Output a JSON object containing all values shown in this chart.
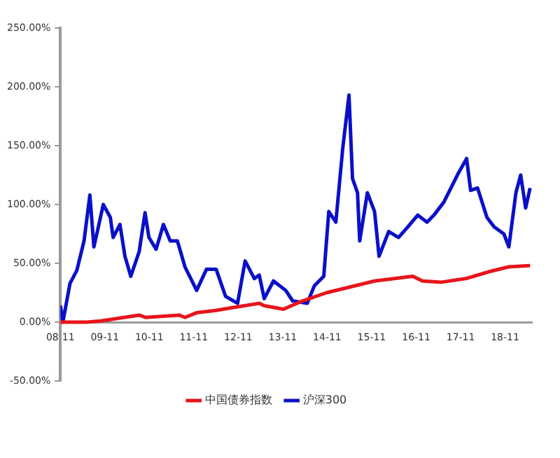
{
  "chart_data": {
    "type": "line",
    "legend": "bottom",
    "grid": false,
    "marker": "none",
    "line_style": "solid",
    "xlim": [
      "2008-11-01",
      "2019-06-10"
    ],
    "ylim": [
      -50,
      250
    ],
    "xticks": [
      {
        "value": "2008-11-01",
        "label": "08-11"
      },
      {
        "value": "2009-11-01",
        "label": "09-11"
      },
      {
        "value": "2010-11-01",
        "label": "10-11"
      },
      {
        "value": "2011-11-01",
        "label": "11-11"
      },
      {
        "value": "2012-11-01",
        "label": "12-11"
      },
      {
        "value": "2013-11-01",
        "label": "13-11"
      },
      {
        "value": "2014-11-01",
        "label": "14-11"
      },
      {
        "value": "2015-11-01",
        "label": "15-11"
      },
      {
        "value": "2016-11-01",
        "label": "16-11"
      },
      {
        "value": "2017-11-01",
        "label": "17-11"
      },
      {
        "value": "2018-11-01",
        "label": "18-11"
      }
    ],
    "yticks": [
      {
        "value": -50,
        "label": "-50.00%"
      },
      {
        "value": 0,
        "label": "0.00%"
      },
      {
        "value": 50,
        "label": "50.00%"
      },
      {
        "value": 100,
        "label": "100.00%"
      },
      {
        "value": 150,
        "label": "150.00%"
      },
      {
        "value": 200,
        "label": "200.00%"
      },
      {
        "value": 250,
        "label": "250.00%"
      }
    ],
    "series": [
      {
        "name": "中国债券指数",
        "color": "#e8141b",
        "x": [
          "2008-11-01",
          "2009-06-05",
          "2009-10-01",
          "2010-08-10",
          "2010-10-04",
          "2011-07-04",
          "2011-08-21",
          "2011-11-25",
          "2012-05-03",
          "2012-08-28",
          "2013-04-22",
          "2013-06-02",
          "2013-11-07",
          "2014-04-11",
          "2014-10-26",
          "2015-11-25",
          "2016-10-04",
          "2016-12-23",
          "2017-05-28",
          "2017-12-13",
          "2018-06-27",
          "2018-12-02",
          "2019-05-25"
        ],
        "values": [
          0,
          0,
          1,
          6,
          4,
          6,
          4,
          8,
          10,
          12,
          16,
          14,
          11,
          18,
          25,
          35,
          39,
          35,
          34,
          37,
          43,
          47,
          48
        ]
      },
      {
        "name": "沪深300",
        "color": "#0a10c8",
        "x": [
          "2008-11-01",
          "2008-11-21",
          "2009-01-19",
          "2009-03-16",
          "2009-05-14",
          "2009-07-01",
          "2009-08-03",
          "2009-09-09",
          "2009-10-19",
          "2009-12-16",
          "2010-01-08",
          "2010-03-05",
          "2010-04-15",
          "2010-06-02",
          "2010-08-10",
          "2010-09-27",
          "2010-10-29",
          "2010-12-27",
          "2011-02-25",
          "2011-04-22",
          "2011-06-20",
          "2011-08-21",
          "2011-11-25",
          "2012-02-14",
          "2012-05-03",
          "2012-07-19",
          "2012-10-26",
          "2012-12-27",
          "2013-03-13",
          "2013-04-22",
          "2013-06-02",
          "2013-08-17",
          "2013-11-25",
          "2014-01-22",
          "2014-05-21",
          "2014-07-19",
          "2014-10-04",
          "2014-11-14",
          "2015-01-11",
          "2015-03-09",
          "2015-04-29",
          "2015-05-28",
          "2015-07-08",
          "2015-07-26",
          "2015-09-27",
          "2015-11-25",
          "2016-01-01",
          "2016-03-20",
          "2016-06-09",
          "2016-08-25",
          "2016-11-14",
          "2017-01-29",
          "2017-03-27",
          "2017-06-16",
          "2017-10-15",
          "2017-12-20",
          "2018-01-22",
          "2018-03-20",
          "2018-06-05",
          "2018-08-03",
          "2018-10-22",
          "2018-12-02",
          "2019-01-29",
          "2019-03-09",
          "2019-04-19",
          "2019-05-25"
        ],
        "values": [
          14,
          0,
          33,
          44,
          69,
          108,
          64,
          81,
          100,
          89,
          72,
          83,
          56,
          39,
          60,
          93,
          72,
          62,
          83,
          69,
          69,
          47,
          27,
          45,
          45,
          22,
          16,
          52,
          37,
          40,
          20,
          35,
          27,
          18,
          16,
          31,
          39,
          94,
          85,
          148,
          193,
          122,
          110,
          69,
          110,
          94,
          56,
          77,
          72,
          81,
          91,
          85,
          91,
          102,
          127,
          139,
          112,
          114,
          89,
          81,
          75,
          64,
          110,
          125,
          97,
          114
        ]
      }
    ]
  }
}
